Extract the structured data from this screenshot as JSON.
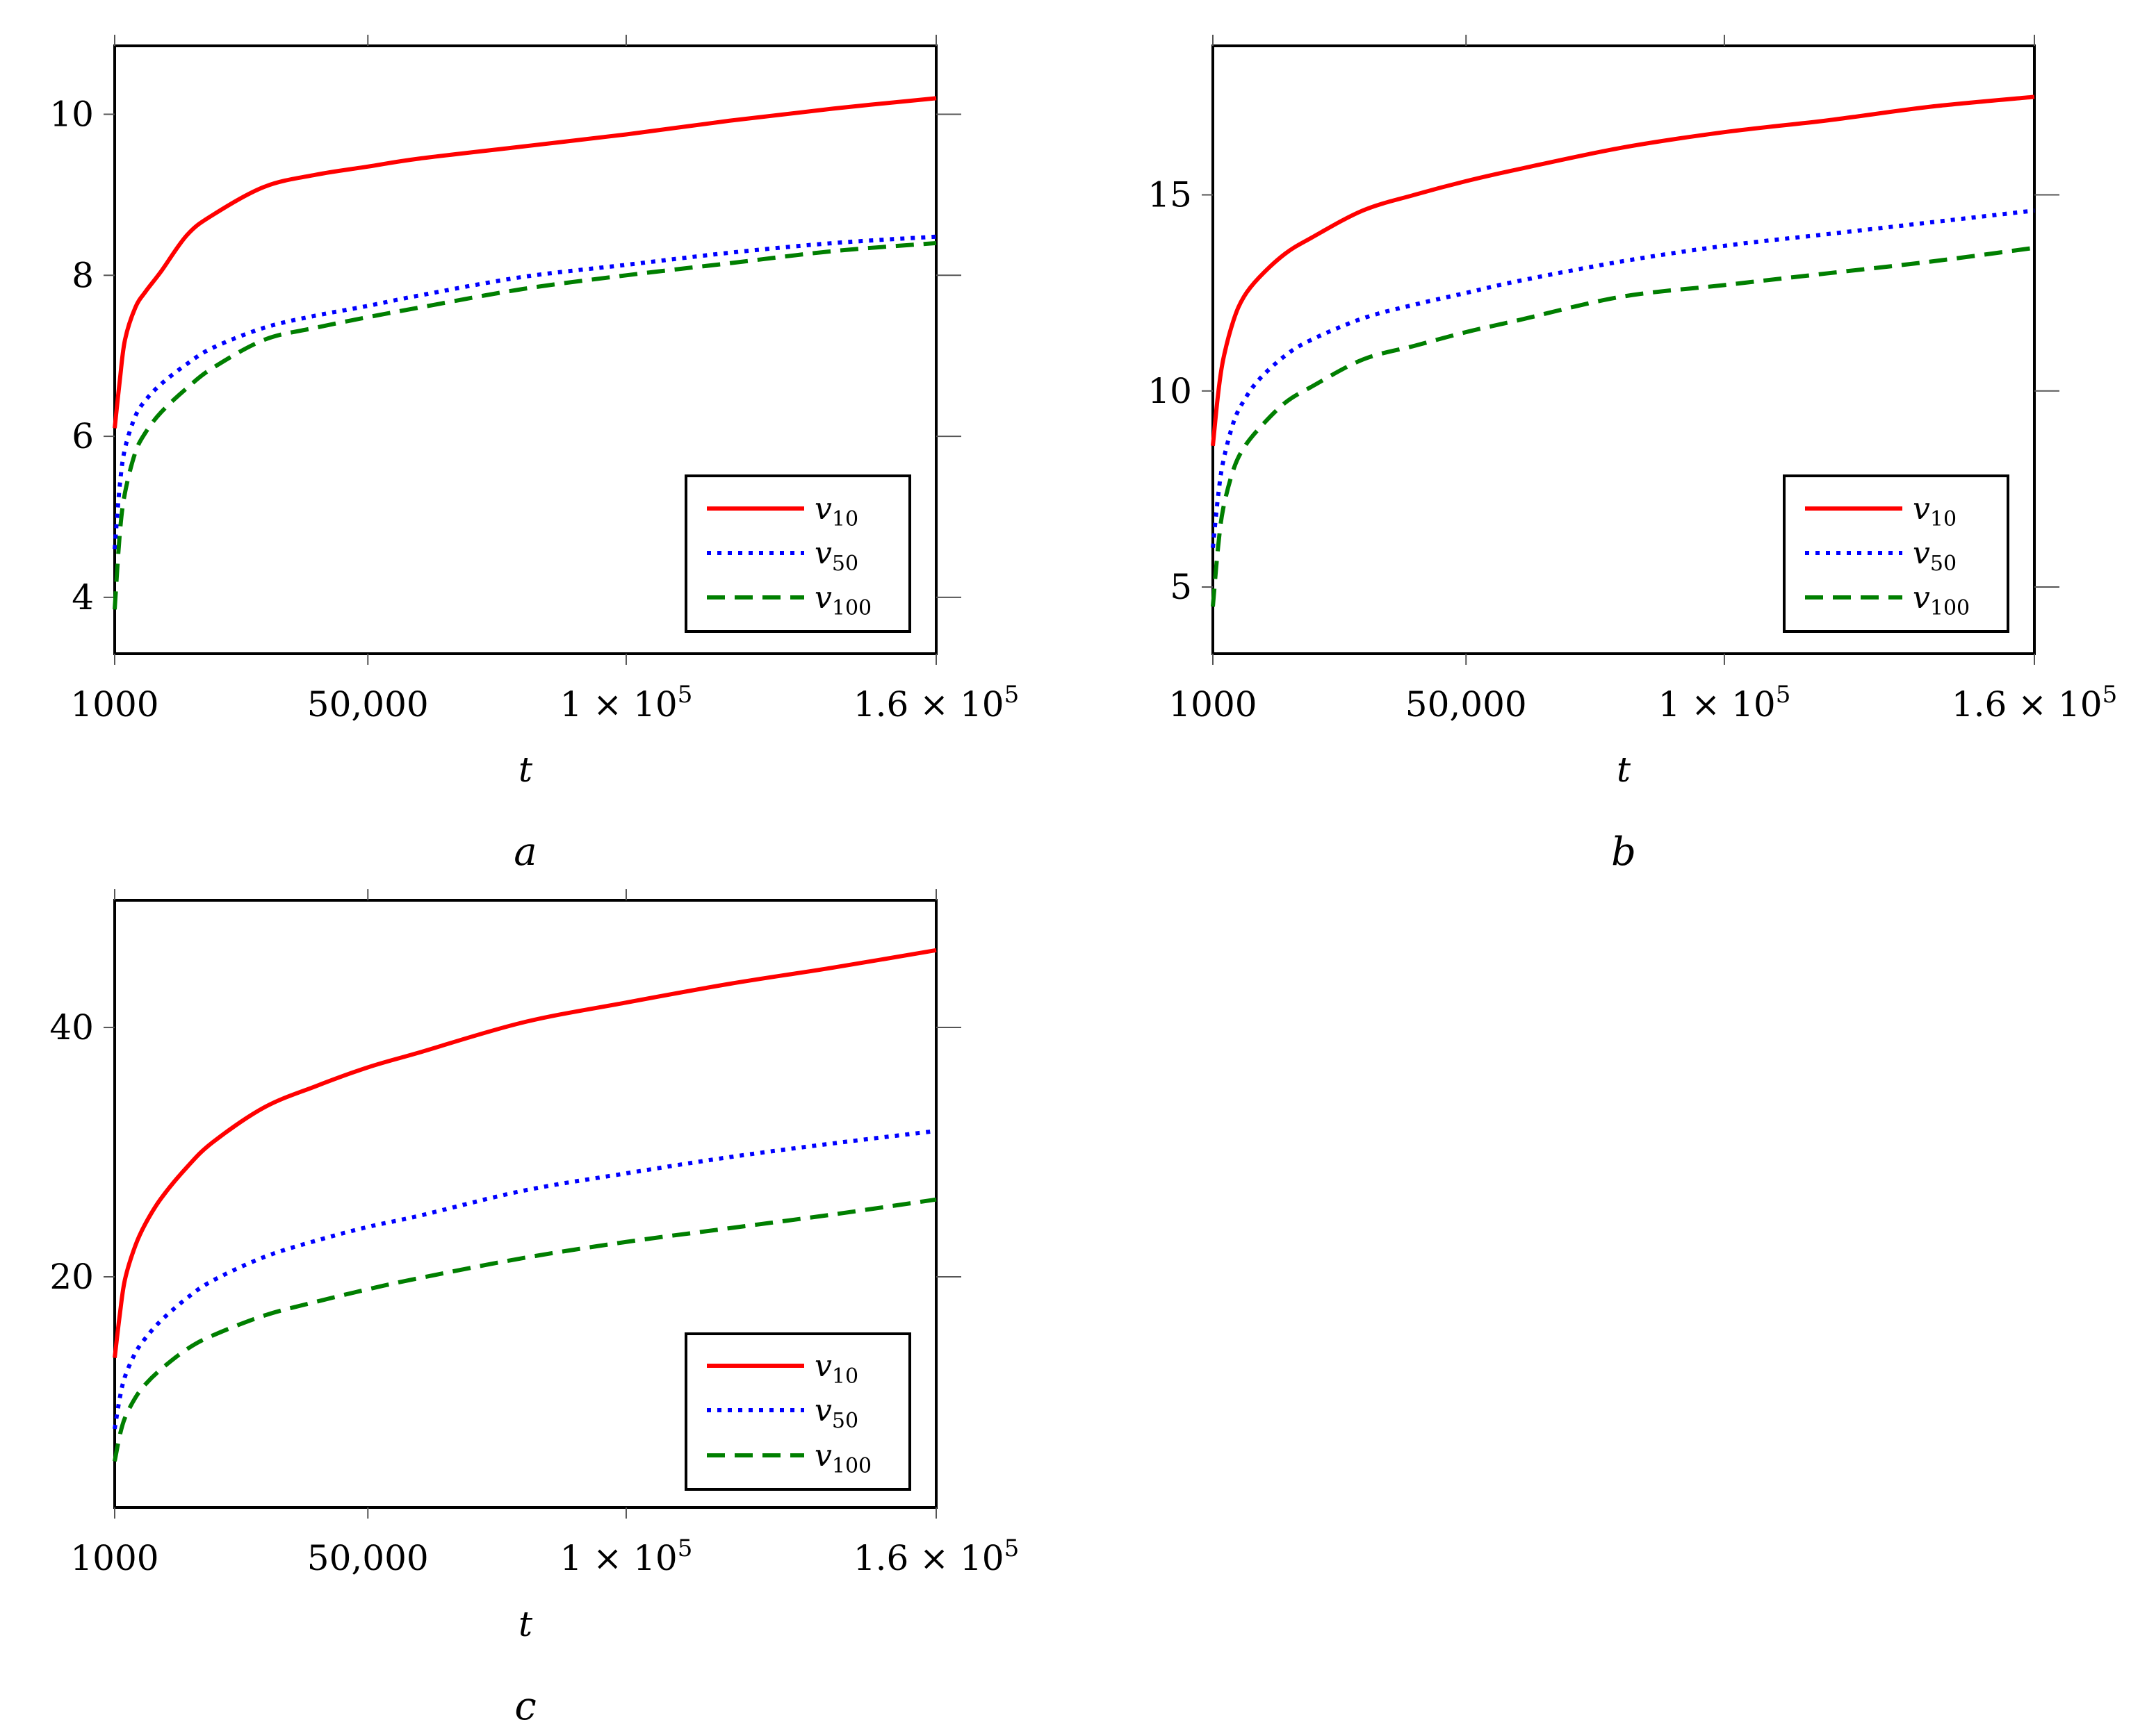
{
  "chart_data": [
    {
      "type": "line",
      "panel_label": "a",
      "xlabel": "t",
      "ylabel": "",
      "xlim": [
        1000,
        160000
      ],
      "ylim": [
        3.3,
        10.85
      ],
      "xticks": [
        {
          "value": 1000,
          "label": "1000"
        },
        {
          "value": 50000,
          "label": "50,000"
        },
        {
          "value": 100000,
          "label": "1 × 10",
          "sup": "5"
        },
        {
          "value": 160000,
          "label": "1.6 × 10",
          "sup": "5"
        }
      ],
      "yticks": [
        {
          "value": 4,
          "label": "4"
        },
        {
          "value": 6,
          "label": "6"
        },
        {
          "value": 8,
          "label": "8"
        },
        {
          "value": 10,
          "label": "10"
        }
      ],
      "legend_position": "bottom-right",
      "x": [
        1000,
        2000,
        3000,
        5000,
        7000,
        10000,
        15000,
        20000,
        30000,
        40000,
        50000,
        60000,
        80000,
        100000,
        120000,
        140000,
        160000
      ],
      "series": [
        {
          "name": "v",
          "sub": "10",
          "color": "#ff0000",
          "dash": "solid",
          "values": [
            6.1,
            6.7,
            7.2,
            7.6,
            7.8,
            8.05,
            8.5,
            8.75,
            9.1,
            9.25,
            9.35,
            9.45,
            9.6,
            9.75,
            9.92,
            10.07,
            10.2
          ]
        },
        {
          "name": "v",
          "sub": "50",
          "color": "#0000ff",
          "dash": "dotted",
          "values": [
            4.6,
            5.4,
            5.85,
            6.25,
            6.45,
            6.65,
            6.9,
            7.1,
            7.35,
            7.5,
            7.62,
            7.75,
            7.98,
            8.13,
            8.28,
            8.4,
            8.48
          ]
        },
        {
          "name": "v",
          "sub": "100",
          "color": "#007f00",
          "dash": "dashed",
          "values": [
            3.85,
            4.8,
            5.3,
            5.8,
            6.05,
            6.3,
            6.6,
            6.85,
            7.2,
            7.35,
            7.48,
            7.6,
            7.83,
            8.0,
            8.15,
            8.3,
            8.4
          ]
        }
      ]
    },
    {
      "type": "line",
      "panel_label": "b",
      "xlabel": "t",
      "ylabel": "",
      "xlim": [
        1000,
        160000
      ],
      "ylim": [
        3.3,
        18.8
      ],
      "xticks": [
        {
          "value": 1000,
          "label": "1000"
        },
        {
          "value": 50000,
          "label": "50,000"
        },
        {
          "value": 100000,
          "label": "1 × 10",
          "sup": "5"
        },
        {
          "value": 160000,
          "label": "1.6 × 10",
          "sup": "5"
        }
      ],
      "yticks": [
        {
          "value": 5,
          "label": "5"
        },
        {
          "value": 10,
          "label": "10"
        },
        {
          "value": 15,
          "label": "15"
        }
      ],
      "legend_position": "bottom-right",
      "x": [
        1000,
        2000,
        3000,
        5000,
        7000,
        10000,
        15000,
        20000,
        30000,
        40000,
        50000,
        60000,
        80000,
        100000,
        120000,
        140000,
        160000
      ],
      "series": [
        {
          "name": "v",
          "sub": "10",
          "color": "#ff0000",
          "dash": "solid",
          "values": [
            8.6,
            9.9,
            10.8,
            11.8,
            12.4,
            12.9,
            13.5,
            13.9,
            14.6,
            15.0,
            15.35,
            15.65,
            16.2,
            16.6,
            16.9,
            17.25,
            17.5
          ]
        },
        {
          "name": "v",
          "sub": "50",
          "color": "#0000ff",
          "dash": "dotted",
          "values": [
            6.0,
            7.3,
            8.2,
            9.2,
            9.75,
            10.3,
            10.9,
            11.3,
            11.85,
            12.2,
            12.5,
            12.8,
            13.3,
            13.7,
            14.0,
            14.3,
            14.6
          ]
        },
        {
          "name": "v",
          "sub": "100",
          "color": "#007f00",
          "dash": "dashed",
          "values": [
            4.5,
            6.0,
            7.0,
            8.0,
            8.55,
            9.05,
            9.7,
            10.1,
            10.8,
            11.15,
            11.5,
            11.8,
            12.4,
            12.7,
            13.0,
            13.3,
            13.65
          ]
        }
      ]
    },
    {
      "type": "line",
      "panel_label": "c",
      "xlabel": "t",
      "ylabel": "",
      "xlim": [
        1000,
        160000
      ],
      "ylim": [
        1.5,
        50.2
      ],
      "xticks": [
        {
          "value": 1000,
          "label": "1000"
        },
        {
          "value": 50000,
          "label": "50,000"
        },
        {
          "value": 100000,
          "label": "1 × 10",
          "sup": "5"
        },
        {
          "value": 160000,
          "label": "1.6 × 10",
          "sup": "5"
        }
      ],
      "yticks": [
        {
          "value": 20,
          "label": "20"
        },
        {
          "value": 40,
          "label": "40"
        }
      ],
      "legend_position": "bottom-right",
      "x": [
        1000,
        2000,
        3000,
        5000,
        7000,
        10000,
        15000,
        20000,
        30000,
        40000,
        50000,
        60000,
        80000,
        100000,
        120000,
        140000,
        160000
      ],
      "series": [
        {
          "name": "v",
          "sub": "10",
          "color": "#ff0000",
          "dash": "solid",
          "values": [
            13.5,
            17.0,
            19.8,
            22.5,
            24.3,
            26.3,
            28.8,
            30.8,
            33.6,
            35.3,
            36.8,
            38.0,
            40.4,
            42.0,
            43.5,
            44.8,
            46.2
          ]
        },
        {
          "name": "v",
          "sub": "50",
          "color": "#0000ff",
          "dash": "dotted",
          "values": [
            7.8,
            10.3,
            12.0,
            13.9,
            15.1,
            16.5,
            18.3,
            19.7,
            21.6,
            22.9,
            24.0,
            24.9,
            26.9,
            28.3,
            29.6,
            30.7,
            31.7
          ]
        },
        {
          "name": "v",
          "sub": "100",
          "color": "#007f00",
          "dash": "dashed",
          "values": [
            5.2,
            7.3,
            8.7,
            10.3,
            11.4,
            12.6,
            14.2,
            15.3,
            16.9,
            18.0,
            19.0,
            19.9,
            21.5,
            22.8,
            23.9,
            25.0,
            26.2
          ]
        }
      ]
    }
  ]
}
